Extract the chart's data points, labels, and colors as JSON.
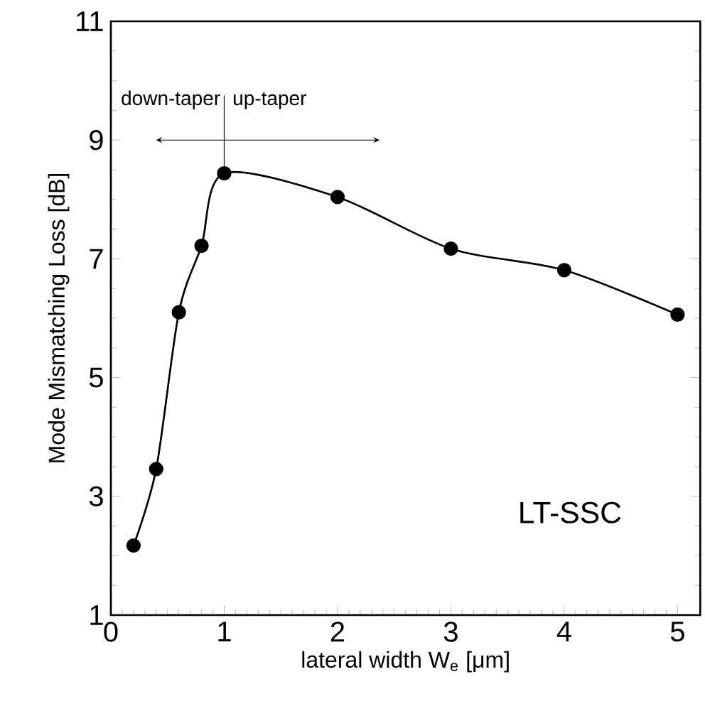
{
  "chart_data": {
    "type": "line",
    "xlabel": "lateral width W$_{e}$ [μm]",
    "ylabel": "Mode Mismatching Loss [dB]",
    "x": [
      0.2,
      0.4,
      0.6,
      0.8,
      1,
      2,
      3,
      4,
      5
    ],
    "series": [
      {
        "color": "#000000",
        "values": [
          2.17,
          3.46,
          6.1,
          7.22,
          8.44,
          8.04,
          7.17,
          6.81,
          6.06
        ]
      }
    ],
    "xlim": [
      0,
      5.2
    ],
    "ylim": [
      1,
      11
    ],
    "xticks": [
      0,
      1,
      2,
      3,
      4,
      5
    ],
    "yticks": [
      1,
      3,
      5,
      7,
      9,
      11
    ],
    "marker": "circle",
    "line_style": "solid",
    "annotations": [
      {
        "text": "down-taper",
        "x": 1,
        "y": 8.44
      },
      {
        "text": "up-taper",
        "x": 1,
        "y": 8.44
      },
      "LT-SSC"
    ]
  }
}
